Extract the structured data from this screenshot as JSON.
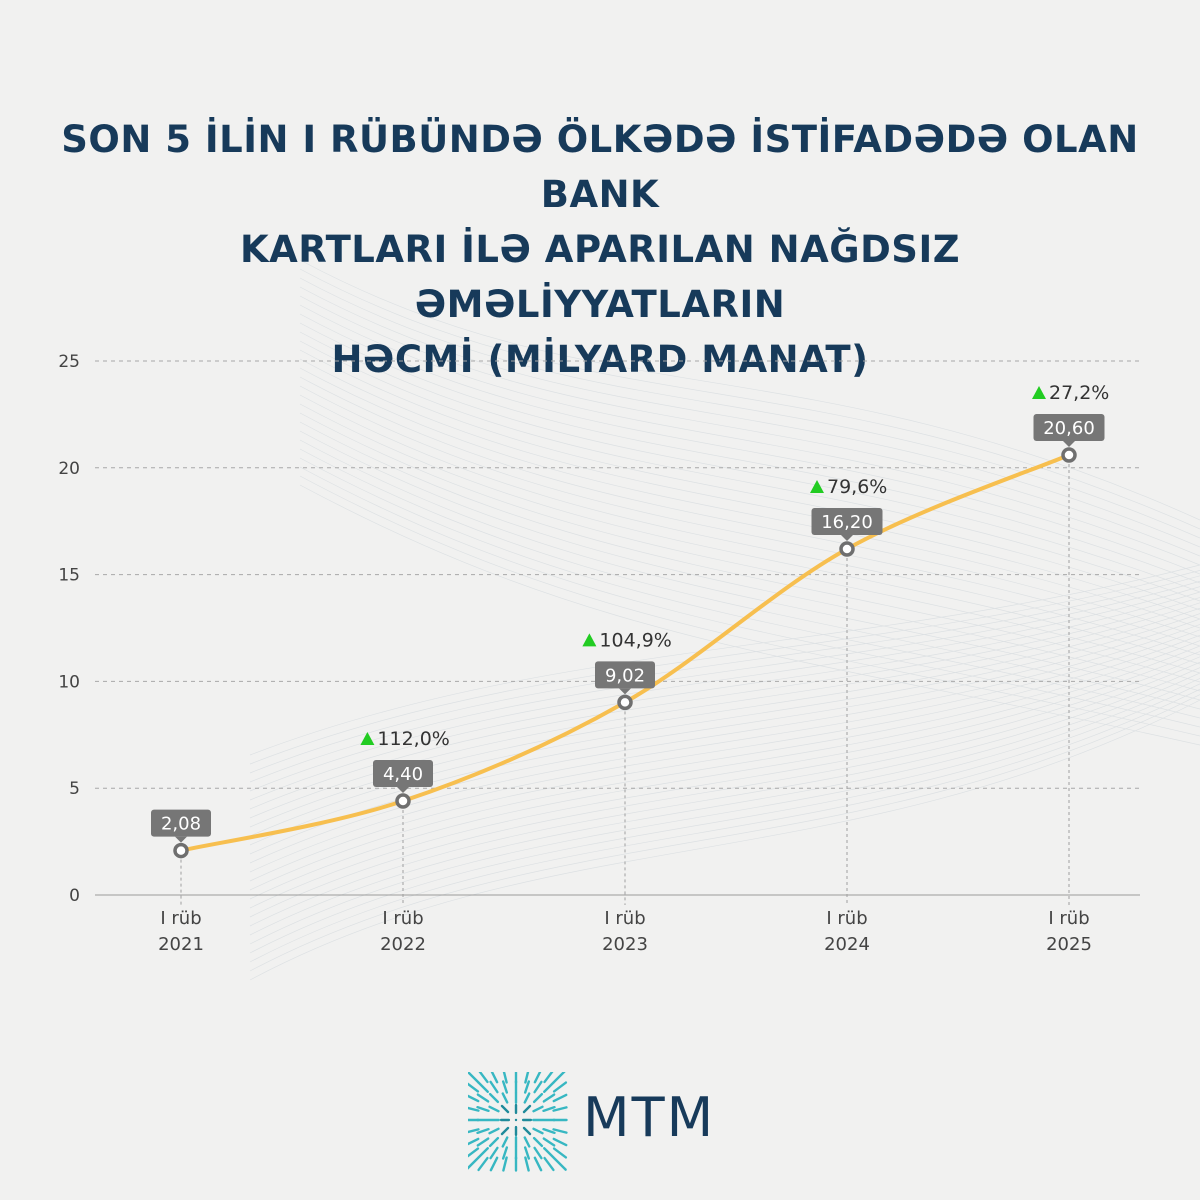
{
  "title": "SON 5 İLİN I RÜBÜNDƏ ÖLKƏDƏ İSTİFADƏDƏ OLAN BANK\nKARTLARI İLƏ APARILAN NAĞDSIZ ƏMƏLİYYATLARIN\nHƏCMİ (MİLYARD MANAT)",
  "logo": {
    "text": "MTM"
  },
  "colors": {
    "title": "#173a5a",
    "line": "#f7bf4f",
    "label_bg": "#767676",
    "up_arrow": "#22cc22",
    "axis_text": "#444444"
  },
  "chart_data": {
    "type": "line",
    "categories": [
      [
        "I rüb",
        "2021"
      ],
      [
        "I rüb",
        "2022"
      ],
      [
        "I rüb",
        "2023"
      ],
      [
        "I rüb",
        "2024"
      ],
      [
        "I rüb",
        "2025"
      ]
    ],
    "values": [
      2.08,
      4.4,
      9.02,
      16.2,
      20.6
    ],
    "value_labels": [
      "2,08",
      "4,40",
      "9,02",
      "16,20",
      "20,60"
    ],
    "growth_labels": [
      "",
      "112,0%",
      "104,9%",
      "79,6%",
      "27,2%"
    ],
    "yticks": [
      "0",
      "5",
      "10",
      "15",
      "20",
      "25"
    ],
    "ylim": [
      0,
      25
    ],
    "grid": true,
    "xlabel": "",
    "ylabel": ""
  }
}
